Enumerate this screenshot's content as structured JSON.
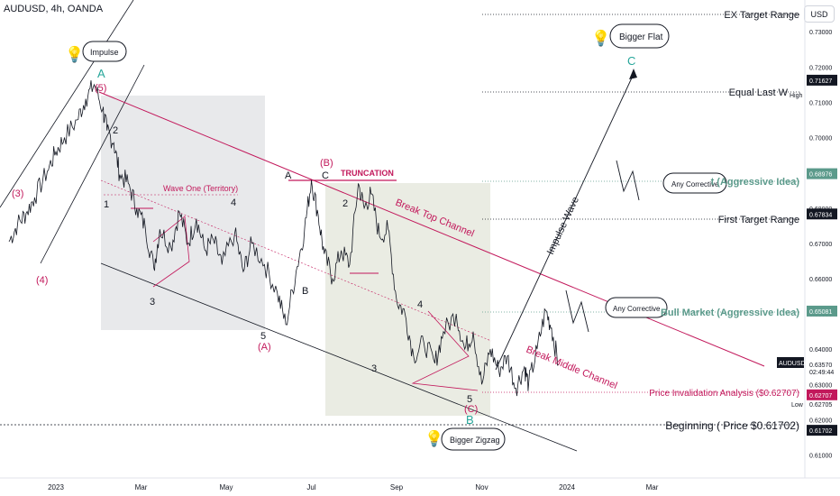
{
  "header": {
    "symbol": "AUDUSD, 4h, OANDA"
  },
  "currency_button": "USD",
  "chart_data": {
    "type": "line",
    "title": "AUDUSD, 4h, OANDA",
    "ylim": [
      0.6035,
      0.739
    ],
    "y_ticks": [
      0.61,
      0.62,
      0.63,
      0.64,
      0.65,
      0.66,
      0.67,
      0.68,
      0.69,
      0.7,
      0.71,
      0.72,
      0.73
    ],
    "x_ticks": [
      {
        "label": "2023",
        "t": 0
      },
      {
        "label": "Mar",
        "t": 1.0
      },
      {
        "label": "May",
        "t": 2.0
      },
      {
        "label": "Jul",
        "t": 3.0
      },
      {
        "label": "Sep",
        "t": 4.0
      },
      {
        "label": "Nov",
        "t": 5.0
      },
      {
        "label": "2024",
        "t": 6.0
      },
      {
        "label": "Mar",
        "t": 7.0
      }
    ],
    "series": [
      {
        "points": [
          [
            -0.55,
            0.6705
          ],
          [
            -0.45,
            0.6755
          ],
          [
            -0.35,
            0.6785
          ],
          [
            -0.25,
            0.683
          ],
          [
            -0.1,
            0.6905
          ],
          [
            0.0,
            0.696
          ],
          [
            0.1,
            0.7
          ],
          [
            0.25,
            0.705
          ],
          [
            0.35,
            0.711
          ],
          [
            0.45,
            0.715
          ],
          [
            0.55,
            0.708
          ],
          [
            0.6,
            0.702
          ],
          [
            0.68,
            0.6985
          ],
          [
            0.75,
            0.6895
          ],
          [
            0.85,
            0.687
          ],
          [
            0.95,
            0.68
          ],
          [
            1.05,
            0.6745
          ],
          [
            1.15,
            0.663
          ],
          [
            1.22,
            0.674
          ],
          [
            1.35,
            0.669
          ],
          [
            1.45,
            0.679
          ],
          [
            1.55,
            0.67
          ],
          [
            1.65,
            0.677
          ],
          [
            1.75,
            0.668
          ],
          [
            1.85,
            0.671
          ],
          [
            1.95,
            0.664
          ],
          [
            2.1,
            0.673
          ],
          [
            2.2,
            0.662
          ],
          [
            2.3,
            0.67
          ],
          [
            2.45,
            0.664
          ],
          [
            2.6,
            0.656
          ],
          [
            2.7,
            0.647
          ],
          [
            2.82,
            0.662
          ],
          [
            2.92,
            0.674
          ],
          [
            3.0,
            0.688
          ],
          [
            3.08,
            0.678
          ],
          [
            3.15,
            0.667
          ],
          [
            3.25,
            0.66
          ],
          [
            3.35,
            0.668
          ],
          [
            3.45,
            0.664
          ],
          [
            3.55,
            0.687
          ],
          [
            3.62,
            0.68
          ],
          [
            3.7,
            0.684
          ],
          [
            3.8,
            0.672
          ],
          [
            3.9,
            0.674
          ],
          [
            4.0,
            0.654
          ],
          [
            4.1,
            0.65
          ],
          [
            4.2,
            0.638
          ],
          [
            4.32,
            0.642
          ],
          [
            4.45,
            0.636
          ],
          [
            4.55,
            0.645
          ],
          [
            4.7,
            0.65
          ],
          [
            4.8,
            0.64
          ],
          [
            4.9,
            0.645
          ],
          [
            5.0,
            0.63
          ],
          [
            5.1,
            0.64
          ],
          [
            5.2,
            0.634
          ],
          [
            5.3,
            0.638
          ],
          [
            5.4,
            0.629
          ],
          [
            5.5,
            0.635
          ],
          [
            5.55,
            0.63
          ],
          [
            5.65,
            0.64
          ],
          [
            5.75,
            0.651
          ],
          [
            5.82,
            0.646
          ],
          [
            5.9,
            0.6357
          ]
        ]
      }
    ],
    "horizontal_levels": [
      {
        "label": "EX Target Range",
        "value": 0.7355
      },
      {
        "label": "Equal Last W",
        "value": 0.716
      },
      {
        "label": "First Target Range",
        "value": 0.6783
      },
      {
        "label": "Bull Market (Aggressive Idea)",
        "value": 0.6508
      },
      {
        "label": "Price Invalidation Analysis ($0.62707)",
        "value": 0.6271
      },
      {
        "label": "Beginning ( Price $0.61702)",
        "value": 0.617
      }
    ],
    "price_tags": [
      {
        "text": "0.71627",
        "value": 0.71627
      },
      {
        "text": "0.68976",
        "value": 0.68976
      },
      {
        "text": "0.67834",
        "value": 0.67834
      },
      {
        "text": "0.65081",
        "value": 0.65081
      },
      {
        "text": "0.63570",
        "value": 0.6357
      },
      {
        "text": "0.62707",
        "value": 0.62707
      },
      {
        "text": "0.61702",
        "value": 0.61702
      }
    ],
    "extra_axis_text": {
      "high": "High",
      "low": "Low",
      "low_value": "0.62705",
      "symbol_tag": "AUDUSD",
      "countdown": "02:49:44"
    },
    "annotations": {
      "impulse": "Impulse",
      "bigger_flat": "Bigger Flat",
      "bigger_zigzag": "Bigger Zigzag",
      "any_corrective": "Any Corrective",
      "aggressive_upper": "t (Aggressive Idea)",
      "wave_one": "Wave One (Territory)",
      "truncation": "TRUNCATION",
      "break_top": "Break Top Channel",
      "break_middle": "Break Middle Channel",
      "impulse_wave": "Impulse Wave",
      "wave_labels": [
        "A",
        "(5)",
        "(3)",
        "(4)",
        "1",
        "2",
        "3",
        "4",
        "5",
        "(A)",
        "A",
        "B",
        "C",
        "(B)",
        "2",
        "3",
        "4",
        "5",
        "(C)",
        "B",
        "C"
      ]
    }
  }
}
